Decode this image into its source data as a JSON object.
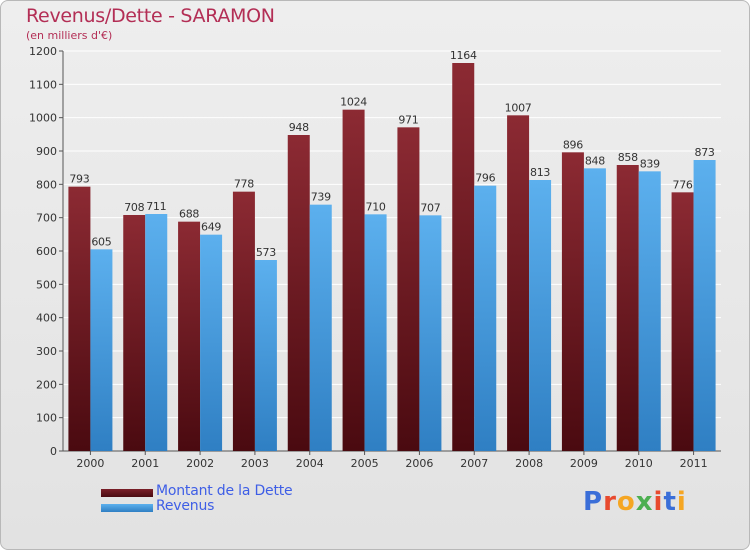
{
  "title": "Revenus/Dette - SARAMON",
  "subtitle": "(en milliers d'€)",
  "logo": "Proxiti",
  "colors": {
    "dette": "#7a1f28",
    "revenus": "#4a9fe0",
    "grid": "#ffffff",
    "text": "#333333",
    "title": "#b32e55",
    "legend_text": "#3e5ee6"
  },
  "chart_data": {
    "type": "bar",
    "categories": [
      "2000",
      "2001",
      "2002",
      "2003",
      "2004",
      "2005",
      "2006",
      "2007",
      "2008",
      "2009",
      "2010",
      "2011"
    ],
    "series": [
      {
        "name": "Montant de la Dette",
        "values": [
          793,
          708,
          688,
          778,
          948,
          1024,
          971,
          1164,
          1007,
          896,
          858,
          776
        ]
      },
      {
        "name": "Revenus",
        "values": [
          605,
          711,
          649,
          573,
          739,
          710,
          707,
          796,
          813,
          848,
          839,
          873
        ]
      }
    ],
    "yticks": [
      0,
      100,
      200,
      300,
      400,
      500,
      600,
      700,
      800,
      900,
      1000,
      1100,
      1200
    ],
    "ylim": [
      0,
      1200
    ],
    "grid": true,
    "legend_position": "bottom-left"
  }
}
